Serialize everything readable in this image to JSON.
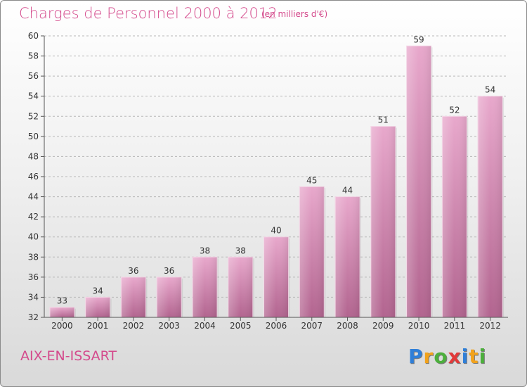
{
  "header": {
    "title": "Charges de Personnel 2000 à 2012",
    "subtitle": "(en milliers d'€)"
  },
  "footer": {
    "commune": "AIX-EN-ISSART",
    "logo_text": "Proxiti",
    "logo_letters": [
      {
        "char": "P",
        "color": "#2f7fd8"
      },
      {
        "char": "r",
        "color": "#f2a21b"
      },
      {
        "char": "o",
        "color": "#4caf3c"
      },
      {
        "char": "x",
        "color": "#e23a3a"
      },
      {
        "char": "i",
        "color": "#2f7fd8"
      },
      {
        "char": "t",
        "color": "#f2a21b"
      },
      {
        "char": "i",
        "color": "#4caf3c"
      }
    ]
  },
  "chart_data": {
    "type": "bar",
    "title": "Charges de Personnel 2000 à 2012",
    "subtitle": "(en milliers d'€)",
    "categories": [
      "2000",
      "2001",
      "2002",
      "2003",
      "2004",
      "2005",
      "2006",
      "2007",
      "2008",
      "2009",
      "2010",
      "2011",
      "2012"
    ],
    "values": [
      33,
      34,
      36,
      36,
      38,
      38,
      40,
      45,
      44,
      51,
      59,
      52,
      54
    ],
    "data_labels": [
      "33",
      "34",
      "36",
      "36",
      "38",
      "38",
      "40",
      "45",
      "44",
      "51",
      "59",
      "52",
      "54"
    ],
    "yticks": [
      "32",
      "34",
      "36",
      "38",
      "40",
      "42",
      "44",
      "46",
      "48",
      "50",
      "52",
      "54",
      "56",
      "58",
      "60"
    ],
    "ylim": [
      32,
      60
    ],
    "xlabel": "",
    "ylabel": "",
    "grid": true,
    "legend": "none",
    "bar_color_top": "#e8a8cc",
    "bar_color_bottom": "#b2648f",
    "label_color": "#333333"
  }
}
